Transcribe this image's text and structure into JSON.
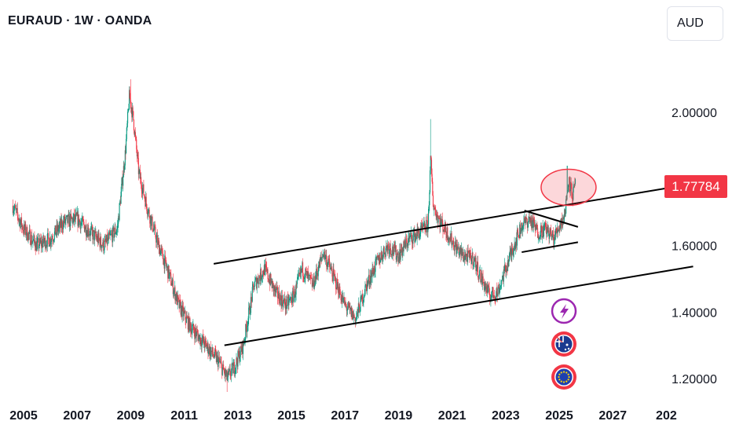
{
  "header": {
    "title": "EURAUD · 1W · OANDA"
  },
  "currency_button": {
    "label": "AUD"
  },
  "price_tag": {
    "value": "1.77784"
  },
  "colors": {
    "up": "#089981",
    "down": "#f23645",
    "highlight": "#f23645",
    "lightning": "#9c27b0"
  },
  "icons": [
    "lightning-icon",
    "australia-flag-icon",
    "eu-flag-icon"
  ],
  "chart_data": {
    "type": "line",
    "title": "EURAUD · 1W · OANDA",
    "xlabel": "",
    "ylabel": "",
    "x_ticks": [
      "2005",
      "2007",
      "2009",
      "2011",
      "2013",
      "2015",
      "2017",
      "2019",
      "2021",
      "2023",
      "2025",
      "2027",
      "202"
    ],
    "y_ticks": [
      "1.20000",
      "1.40000",
      "1.60000",
      "2.00000"
    ],
    "ylim": [
      1.12,
      2.23
    ],
    "xlim": [
      2004.6,
      2029.8
    ],
    "last_price": 1.77784,
    "series": [
      {
        "x": [
          2004.6,
          2005.0,
          2005.5,
          2006.0,
          2006.5,
          2007.0,
          2007.5,
          2008.0,
          2008.5,
          2008.8,
          2008.95,
          2009.1,
          2009.3,
          2009.6,
          2010.0,
          2010.4,
          2010.8,
          2011.2,
          2011.6,
          2012.0,
          2012.3,
          2012.6,
          2012.9,
          2013.2,
          2013.6,
          2014.0,
          2014.4,
          2014.8,
          2015.1,
          2015.4,
          2015.8,
          2016.2,
          2016.6,
          2017.0,
          2017.4,
          2017.8,
          2018.2,
          2018.6,
          2019.0,
          2019.4,
          2019.8,
          2020.1,
          2020.2,
          2020.3,
          2020.5,
          2020.8,
          2021.1,
          2021.4,
          2021.8,
          2022.1,
          2022.4,
          2022.7,
          2023.0,
          2023.3,
          2023.6,
          2023.9,
          2024.2,
          2024.5,
          2024.8,
          2025.0,
          2025.2,
          2025.35,
          2025.5,
          2025.6
        ],
        "y": [
          1.72,
          1.65,
          1.6,
          1.62,
          1.67,
          1.68,
          1.64,
          1.6,
          1.65,
          1.88,
          2.05,
          1.98,
          1.82,
          1.72,
          1.61,
          1.52,
          1.42,
          1.36,
          1.32,
          1.28,
          1.25,
          1.2,
          1.24,
          1.3,
          1.48,
          1.53,
          1.46,
          1.42,
          1.45,
          1.53,
          1.48,
          1.58,
          1.5,
          1.42,
          1.38,
          1.48,
          1.55,
          1.6,
          1.57,
          1.62,
          1.64,
          1.66,
          1.86,
          1.72,
          1.68,
          1.64,
          1.6,
          1.57,
          1.56,
          1.5,
          1.45,
          1.46,
          1.53,
          1.6,
          1.66,
          1.68,
          1.64,
          1.65,
          1.62,
          1.66,
          1.69,
          1.8,
          1.75,
          1.78
        ]
      }
    ],
    "annotations": {
      "trendlines": [
        {
          "x1": 2012.1,
          "y1": 1.545,
          "x2": 2029.8,
          "y2": 1.783
        },
        {
          "x1": 2012.5,
          "y1": 1.3,
          "x2": 2030.0,
          "y2": 1.537
        },
        {
          "x1": 2023.7,
          "y1": 1.705,
          "x2": 2025.7,
          "y2": 1.656
        },
        {
          "x1": 2023.6,
          "y1": 1.58,
          "x2": 2025.7,
          "y2": 1.61
        }
      ],
      "ellipse": {
        "x": 2025.35,
        "y": 1.775
      }
    }
  }
}
